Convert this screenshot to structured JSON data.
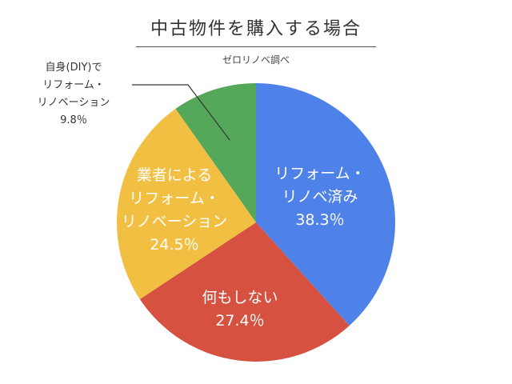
{
  "chart_data": {
    "type": "pie",
    "title": "中古物件を購入する場合",
    "subtitle": "ゼロリノベ調べ",
    "slices": [
      {
        "label_lines": [
          "リフォーム・",
          "リノベ済み"
        ],
        "value": 38.3,
        "value_text": "38.3％",
        "color": "#4f82e8",
        "label_style": "inside"
      },
      {
        "label_lines": [
          "何もしない"
        ],
        "value": 27.4,
        "value_text": "27.4％",
        "color": "#d6513f",
        "label_style": "inside"
      },
      {
        "label_lines": [
          "業者による",
          "リフォーム・",
          "リノベーション"
        ],
        "value": 24.5,
        "value_text": "24.5％",
        "color": "#f1bf41",
        "label_style": "inside"
      },
      {
        "label_lines": [
          "自身(DIY)で",
          "リフォーム・",
          "リノベーション"
        ],
        "value": 9.8,
        "value_text": "9.8％",
        "color": "#55a75a",
        "label_style": "callout"
      }
    ]
  }
}
